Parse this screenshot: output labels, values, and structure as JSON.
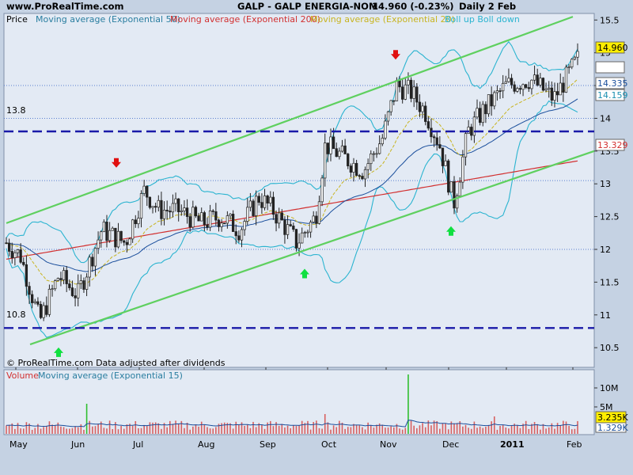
{
  "header": {
    "site": "www.ProRealTime.com",
    "title": "GALP - GALP ENERGIA-NOM",
    "quote": "14.960 (-0.23%)",
    "period": "Daily 2 Feb"
  },
  "legend": [
    {
      "label": "Price",
      "color": "#000000"
    },
    {
      "label": "Moving average (Exponential 50)",
      "color": "#2a7ea0"
    },
    {
      "label": "Moving average (Exponential 200)",
      "color": "#d23030"
    },
    {
      "label": "Moving average (Exponential 20)",
      "color": "#c8b420"
    },
    {
      "label": "Boll up Boll down",
      "color": "#2bb4d0"
    }
  ],
  "footer_note": "© ProRealTime.com  Data adjusted after dividends",
  "volume_legend": [
    {
      "label": "Volume",
      "color": "#d23030"
    },
    {
      "label": "Moving average (Exponential 15)",
      "color": "#2a7ea0"
    }
  ],
  "price_badges": [
    {
      "text": "14.960",
      "bg": "#ffee00",
      "fg": "#000000"
    },
    {
      "text": "14.335",
      "bg": "#ffffff",
      "fg": "#1b4f9c"
    },
    {
      "text": "14.159",
      "bg": "#ffffff",
      "fg": "#1b8fb0"
    },
    {
      "text": "13.329",
      "bg": "#ffffff",
      "fg": "#d23030"
    }
  ],
  "volume_badges": [
    {
      "text": "3.235K",
      "bg": "#ffee00",
      "fg": "#000000"
    },
    {
      "text": "1.329K",
      "bg": "#ffffff",
      "fg": "#1b4f9c"
    }
  ],
  "level_labels": [
    "13.8",
    "10.8"
  ],
  "chart_data": [
    {
      "type": "candlestick",
      "title": "GALP - GALP ENERGIA-NOM",
      "x_ticks": [
        "May",
        "Jun",
        "Jul",
        "Aug",
        "Sep",
        "Oct",
        "Nov",
        "Dec",
        "2011",
        "Jan",
        "Feb"
      ],
      "y_ticks": [
        10.5,
        11,
        11.5,
        12,
        12.5,
        13,
        13.5,
        14,
        14.5,
        15,
        15.5
      ],
      "ylim": [
        10.2,
        15.6
      ],
      "last_price": 14.96,
      "channel_upper": {
        "start": {
          "x": "May",
          "y": 12.4
        },
        "end": {
          "x": "Feb",
          "y": 15.55
        }
      },
      "channel_lower": {
        "start": {
          "x": "May",
          "y": 10.55
        },
        "end": {
          "x": "Feb",
          "y": 13.5
        }
      },
      "horizontal_levels": [
        13.8,
        10.8
      ],
      "dotted_levels": [
        14.5,
        14.0,
        13.05,
        12.0
      ],
      "arrows": [
        {
          "date": "Jun 21",
          "direction": "down",
          "price": 13.15
        },
        {
          "date": "Nov 05",
          "direction": "down",
          "price": 14.8
        },
        {
          "date": "May 25",
          "direction": "up",
          "price": 10.6
        },
        {
          "date": "Sep 22",
          "direction": "up",
          "price": 11.8
        },
        {
          "date": "Nov 30",
          "direction": "up",
          "price": 12.45
        }
      ]
    },
    {
      "type": "bar",
      "title": "Volume",
      "y_ticks": [
        "5M",
        "10M"
      ],
      "last_volume": "3.235K"
    }
  ]
}
